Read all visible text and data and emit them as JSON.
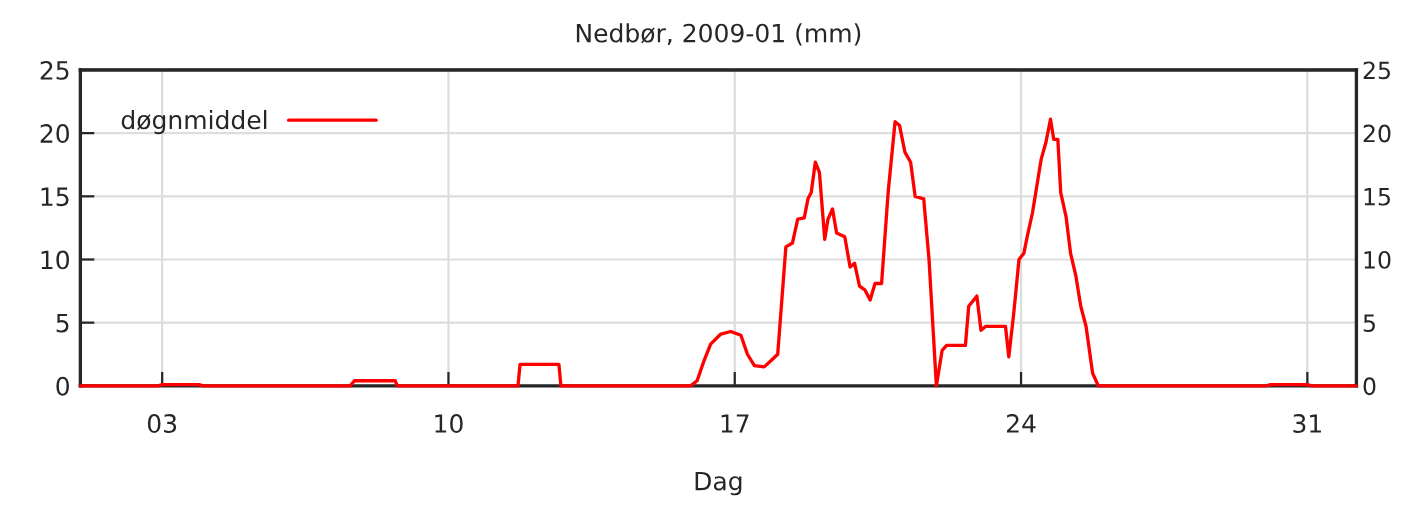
{
  "chart_data": {
    "type": "line",
    "title": "Nedbør, 2009-01 (mm)",
    "xlabel": "Dag",
    "x": [
      1,
      2.9,
      3,
      3.9,
      4,
      7.6,
      7.7,
      8.7,
      8.75,
      11.7,
      11.75,
      12.7,
      12.75,
      15.92,
      16.08,
      16.25,
      16.41,
      16.66,
      16.9,
      17.15,
      17.31,
      17.48,
      17.72,
      17.89,
      18.05,
      18.25,
      18.41,
      18.54,
      18.7,
      18.79,
      18.87,
      18.97,
      19.07,
      19.2,
      19.28,
      19.39,
      19.49,
      19.69,
      19.82,
      19.93,
      20.05,
      20.18,
      20.31,
      20.43,
      20.59,
      20.75,
      20.92,
      21.03,
      21.16,
      21.3,
      21.41,
      21.62,
      21.75,
      21.93,
      22.07,
      22.18,
      22.64,
      22.72,
      22.92,
      23.02,
      23.13,
      23.62,
      23.7,
      23.82,
      23.95,
      24.07,
      24.15,
      24.28,
      24.36,
      24.49,
      24.61,
      24.72,
      24.8,
      24.9,
      24.97,
      25.1,
      25.21,
      25.34,
      25.46,
      25.59,
      25.75,
      25.89,
      30.0,
      30.1,
      31.0,
      31.1,
      32.2
    ],
    "series": [
      {
        "name": "døgnmiddel",
        "color": "#ff0000",
        "values": [
          0,
          0,
          0.1,
          0.1,
          0,
          0,
          0.4,
          0.4,
          0,
          0,
          1.7,
          1.7,
          0,
          0,
          0.4,
          2.0,
          3.3,
          4.1,
          4.3,
          4.0,
          2.5,
          1.6,
          1.5,
          2.0,
          2.5,
          11.0,
          11.3,
          13.2,
          13.3,
          14.8,
          15.3,
          17.7,
          16.9,
          11.6,
          13.2,
          14.0,
          12.1,
          11.8,
          9.4,
          9.7,
          7.9,
          7.6,
          6.8,
          8.1,
          8.1,
          15.3,
          20.9,
          20.6,
          18.5,
          17.7,
          15.0,
          14.8,
          10.0,
          0,
          2.8,
          3.2,
          3.2,
          6.3,
          7.1,
          4.4,
          4.7,
          4.7,
          2.3,
          5.7,
          10.0,
          10.5,
          11.8,
          13.7,
          15.3,
          17.9,
          19.3,
          21.1,
          19.5,
          19.5,
          15.3,
          13.4,
          10.5,
          8.7,
          6.3,
          4.7,
          1.0,
          0,
          0,
          0.1,
          0.1,
          0,
          0
        ]
      }
    ],
    "xlim": [
      1,
      32.2
    ],
    "xticks": [
      {
        "value": 3,
        "label": "03"
      },
      {
        "value": 10,
        "label": "10"
      },
      {
        "value": 17,
        "label": "17"
      },
      {
        "value": 24,
        "label": "24"
      },
      {
        "value": 31,
        "label": "31"
      }
    ],
    "ylim": [
      0,
      25
    ],
    "yticks": [
      0,
      5,
      10,
      15,
      20,
      25
    ],
    "y2lim": [
      0,
      25
    ],
    "y2ticks": [
      0,
      5,
      10,
      15,
      20,
      25
    ],
    "grid": true,
    "legend": "top left"
  }
}
